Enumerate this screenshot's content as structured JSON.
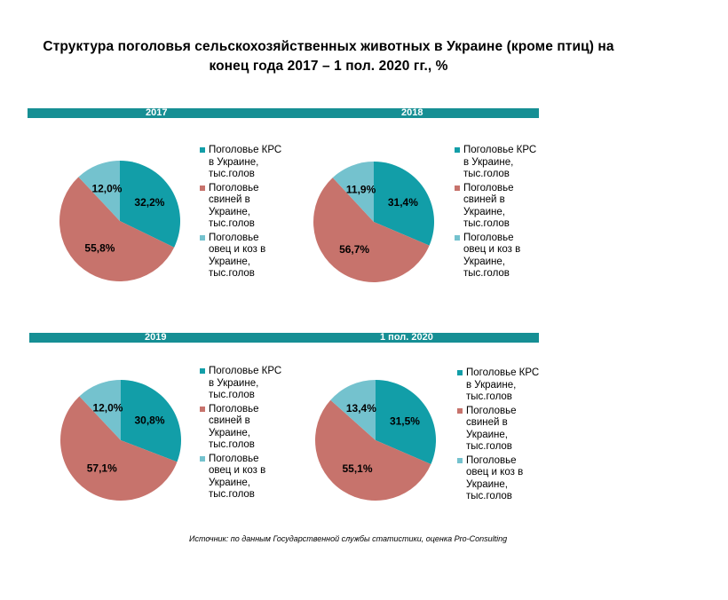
{
  "title": {
    "line1": "Структура  поголовья  сельскохозяйственных  животных  в Украине (кроме птиц) на",
    "line2": "конец года 2017  – 1 пол. 2020 гг., %"
  },
  "colors": {
    "band": "#168f94",
    "cattle": "#129ea8",
    "pigs": "#c7736c",
    "sheep": "#74c2ce"
  },
  "legend_labels": [
    "Поголовье КРС в Украине, тыс.голов",
    "Поголовье свиней в Украине, тыс.голов",
    "Поголовье овец и коз в Украине, тыс.голов"
  ],
  "chart_data": [
    {
      "type": "pie",
      "title": "2017",
      "categories": [
        "Поголовье КРС в Украине, тыс.голов",
        "Поголовье свиней в Украине, тыс.голов",
        "Поголовье овец и коз в Украине, тыс.голов"
      ],
      "values": [
        32.2,
        55.8,
        12.0
      ],
      "labels": [
        "32,2%",
        "55,8%",
        "12,0%"
      ]
    },
    {
      "type": "pie",
      "title": "2018",
      "categories": [
        "Поголовье КРС в Украине, тыс.голов",
        "Поголовье свиней в Украине, тыс.голов",
        "Поголовье овец и коз в Украине, тыс.голов"
      ],
      "values": [
        31.4,
        56.7,
        11.9
      ],
      "labels": [
        "31,4%",
        "56,7%",
        "11,9%"
      ]
    },
    {
      "type": "pie",
      "title": "2019",
      "categories": [
        "Поголовье КРС в Украине, тыс.голов",
        "Поголовье свиней в Украине, тыс.голов",
        "Поголовье овец и коз в Украине, тыс.голов"
      ],
      "values": [
        30.8,
        57.1,
        12.0
      ],
      "labels": [
        "30,8%",
        "57,1%",
        "12,0%"
      ]
    },
    {
      "type": "pie",
      "title": "1 пол. 2020",
      "categories": [
        "Поголовье КРС в Украине, тыс.голов",
        "Поголовье свиней в Украине, тыс.голов",
        "Поголовье овец и коз в Украине, тыс.голов"
      ],
      "values": [
        31.5,
        55.1,
        13.4
      ],
      "labels": [
        "31,5%",
        "55,1%",
        "13,4%"
      ]
    }
  ],
  "source": "Источник: по данным Государственной службы статистики, оценка Pro-Consulting"
}
